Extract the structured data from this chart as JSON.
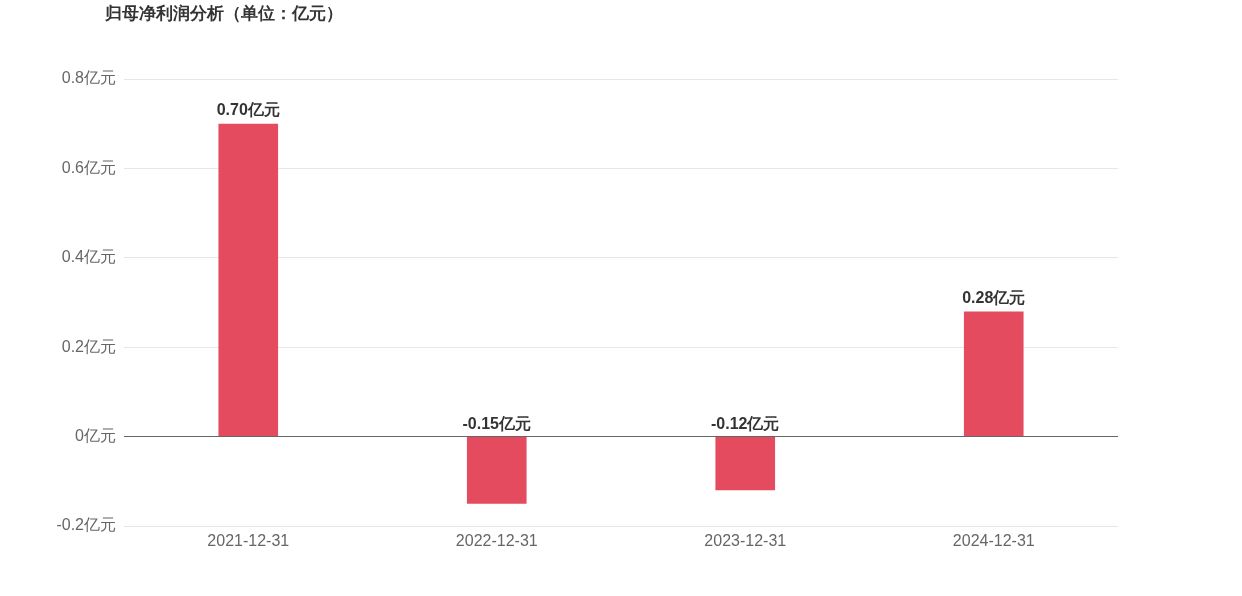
{
  "chart_data": {
    "type": "bar",
    "title": "归母净利润分析（单位：亿元）",
    "categories": [
      "2021-12-31",
      "2022-12-31",
      "2023-12-31",
      "2024-12-31"
    ],
    "values": [
      0.7,
      -0.15,
      -0.12,
      0.28
    ],
    "value_labels": [
      "0.70亿元",
      "-0.15亿元",
      "-0.12亿元",
      "0.28亿元"
    ],
    "color": "#e54b5e",
    "ylim": [
      -0.2,
      0.8
    ],
    "yticks": [
      {
        "value": -0.2,
        "label": "-0.2亿元"
      },
      {
        "value": 0,
        "label": "0亿元"
      },
      {
        "value": 0.2,
        "label": "0.2亿元"
      },
      {
        "value": 0.4,
        "label": "0.4亿元"
      },
      {
        "value": 0.6,
        "label": "0.6亿元"
      },
      {
        "value": 0.8,
        "label": "0.8亿元"
      }
    ],
    "grid": "y",
    "legend": false
  }
}
